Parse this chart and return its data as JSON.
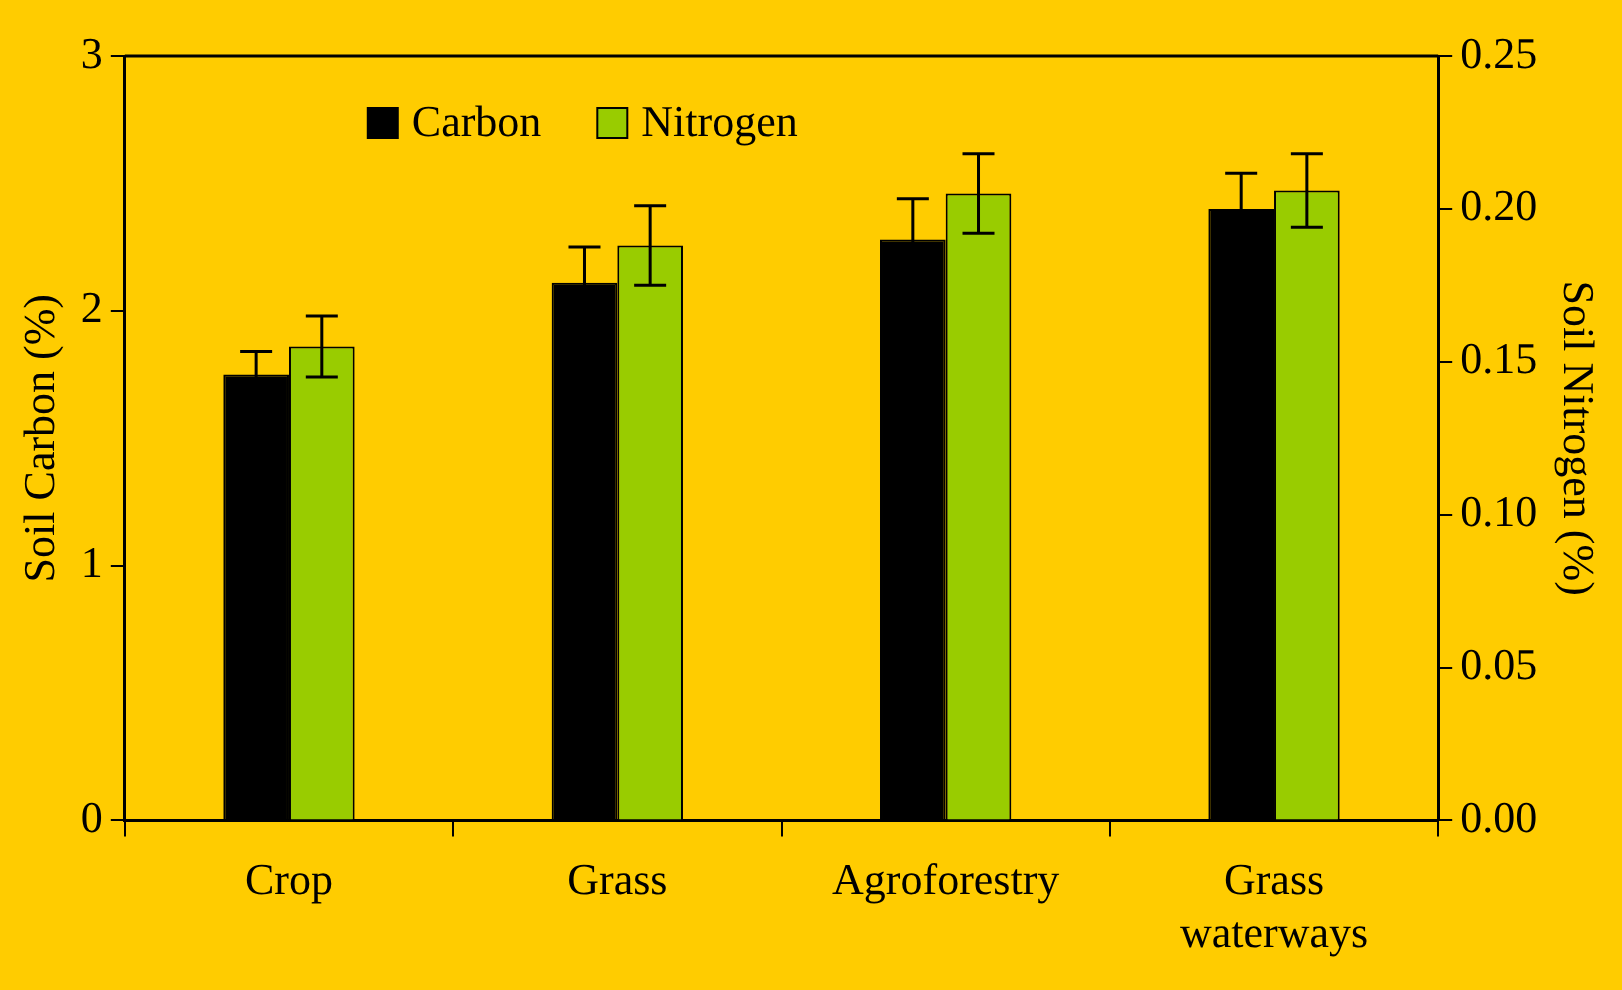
{
  "chart_data": {
    "type": "bar",
    "categories": [
      "Crop",
      "Grass",
      "Agroforestry",
      "Grass waterways"
    ],
    "series": [
      {
        "name": "Carbon",
        "color": "#000000",
        "values": [
          1.75,
          2.11,
          2.28,
          2.4
        ],
        "errors": [
          0.09,
          0.14,
          0.16,
          0.14
        ]
      },
      {
        "name": "Nitrogen",
        "color": "#99cc00",
        "axis": "y2",
        "values": [
          0.155,
          0.188,
          0.205,
          0.206
        ],
        "errors": [
          0.01,
          0.013,
          0.013,
          0.012
        ]
      }
    ],
    "ylabel": "Soil Carbon (%)",
    "y2label": "Soil Nitrogen (%)",
    "ylim": [
      0,
      3
    ],
    "yticks": [
      0,
      1,
      2,
      3
    ],
    "y2lim": [
      0,
      0.25
    ],
    "y2ticks": [
      {
        "value": 0,
        "label": "0.00"
      },
      {
        "value": 0.05,
        "label": "0.05"
      },
      {
        "value": 0.1,
        "label": "0.10"
      },
      {
        "value": 0.15,
        "label": "0.15"
      },
      {
        "value": 0.2,
        "label": "0.20"
      },
      {
        "value": 0.25,
        "label": "0.25"
      }
    ],
    "legend": "top left",
    "grid": false
  }
}
